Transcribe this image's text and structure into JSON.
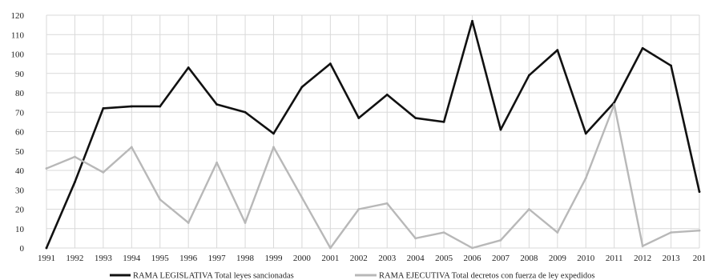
{
  "chart_data": {
    "type": "line",
    "title": "",
    "xlabel": "",
    "ylabel": "",
    "ylim": [
      0,
      120
    ],
    "yticks": [
      0,
      10,
      20,
      30,
      40,
      50,
      60,
      70,
      80,
      90,
      100,
      110,
      120
    ],
    "grid": true,
    "legend_position": "bottom",
    "categories": [
      "1991",
      "1992",
      "1993",
      "1994",
      "1995",
      "1996",
      "1997",
      "1998",
      "1999",
      "2000",
      "2001",
      "2002",
      "2003",
      "2004",
      "2005",
      "2006",
      "2007",
      "2008",
      "2009",
      "2010",
      "2011",
      "2012",
      "2013",
      "201"
    ],
    "series": [
      {
        "name": "RAMA LEGISLATIVA Total leyes sancionadas",
        "color": "#111111",
        "values": [
          0,
          34,
          72,
          73,
          73,
          93,
          74,
          70,
          59,
          83,
          95,
          67,
          79,
          67,
          65,
          117,
          61,
          89,
          102,
          59,
          75,
          103,
          94,
          29
        ]
      },
      {
        "name": "RAMA EJECUTIVA Total decretos con fuerza de ley expedidos",
        "color": "#b8b8b8",
        "values": [
          41,
          47,
          39,
          52,
          25,
          13,
          44,
          13,
          52,
          26,
          0,
          20,
          23,
          5,
          8,
          0,
          4,
          20,
          8,
          36,
          74,
          1,
          8,
          9
        ]
      }
    ]
  }
}
